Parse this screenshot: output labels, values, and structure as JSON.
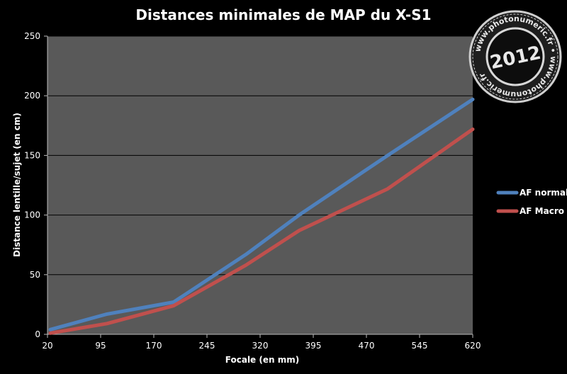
{
  "chart_data": {
    "type": "line",
    "title": "Distances minimales de MAP du X-S1",
    "xlabel": "Focale (en mm)",
    "ylabel": "Distance lentille/sujet (en cm)",
    "x_ticks": [
      20,
      95,
      170,
      245,
      320,
      395,
      470,
      545,
      620
    ],
    "y_ticks": [
      0,
      50,
      100,
      150,
      200,
      250
    ],
    "xlim": [
      20,
      620
    ],
    "ylim": [
      0,
      250
    ],
    "grid": "horizontal",
    "legend_position": "right",
    "series": [
      {
        "name": "AF normal",
        "color": "#4f81bd",
        "points": [
          [
            24,
            4
          ],
          [
            104,
            17
          ],
          [
            198,
            27
          ],
          [
            300,
            67
          ],
          [
            375,
            100
          ],
          [
            500,
            150
          ],
          [
            620,
            197
          ]
        ]
      },
      {
        "name": "AF Macro",
        "color": "#c0504d",
        "points": [
          [
            24,
            1
          ],
          [
            104,
            9
          ],
          [
            198,
            24
          ],
          [
            300,
            58
          ],
          [
            375,
            87
          ],
          [
            500,
            122
          ],
          [
            620,
            172
          ]
        ]
      }
    ]
  },
  "colors": {
    "background": "#000000",
    "plot_area": "#595959",
    "gridline": "#000000",
    "text": "#ffffff"
  },
  "watermark": {
    "year": "2012",
    "ring_text": "www.photonumeric.fr"
  }
}
